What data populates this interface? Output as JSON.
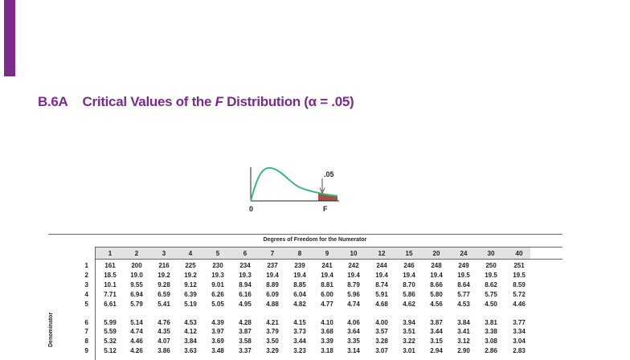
{
  "title": {
    "label": "B.6A",
    "prefix": "Critical Values of the ",
    "italic": "F",
    "suffix": " Distribution (α = .05)"
  },
  "figure": {
    "tail_label": ".05",
    "zero_label": "0",
    "f_label": "F"
  },
  "table": {
    "column_group": "Degrees of Freedom for the Numerator",
    "row_group": "Denominator",
    "columns": [
      "1",
      "2",
      "3",
      "4",
      "5",
      "6",
      "7",
      "8",
      "9",
      "10",
      "12",
      "15",
      "20",
      "24",
      "30",
      "40"
    ],
    "rows": [
      {
        "df": "1",
        "values": [
          "161",
          "200",
          "216",
          "225",
          "230",
          "234",
          "237",
          "239",
          "241",
          "242",
          "244",
          "246",
          "248",
          "249",
          "250",
          "251"
        ]
      },
      {
        "df": "2",
        "values": [
          "18.5",
          "19.0",
          "19.2",
          "19.2",
          "19.3",
          "19.3",
          "19.4",
          "19.4",
          "19.4",
          "19.4",
          "19.4",
          "19.4",
          "19.4",
          "19.5",
          "19.5",
          "19.5"
        ]
      },
      {
        "df": "3",
        "values": [
          "10.1",
          "9.55",
          "9.28",
          "9.12",
          "9.01",
          "8.94",
          "8.89",
          "8.85",
          "8.81",
          "8.79",
          "8.74",
          "8.70",
          "8.66",
          "8.64",
          "8.62",
          "8.59"
        ]
      },
      {
        "df": "4",
        "values": [
          "7.71",
          "6.94",
          "6.59",
          "6.39",
          "6.26",
          "6.16",
          "6.09",
          "6.04",
          "6.00",
          "5.96",
          "5.91",
          "5.86",
          "5.80",
          "5.77",
          "5.75",
          "5.72"
        ]
      },
      {
        "df": "5",
        "values": [
          "6.61",
          "5.79",
          "5.41",
          "5.19",
          "5.05",
          "4.95",
          "4.88",
          "4.82",
          "4.77",
          "4.74",
          "4.68",
          "4.62",
          "4.56",
          "4.53",
          "4.50",
          "4.46"
        ]
      },
      {
        "df": "6",
        "values": [
          "5.99",
          "5.14",
          "4.76",
          "4.53",
          "4.39",
          "4.28",
          "4.21",
          "4.15",
          "4.10",
          "4.06",
          "4.00",
          "3.94",
          "3.87",
          "3.84",
          "3.81",
          "3.77"
        ]
      },
      {
        "df": "7",
        "values": [
          "5.59",
          "4.74",
          "4.35",
          "4.12",
          "3.97",
          "3.87",
          "3.79",
          "3.73",
          "3.68",
          "3.64",
          "3.57",
          "3.51",
          "3.44",
          "3.41",
          "3.38",
          "3.34"
        ]
      },
      {
        "df": "8",
        "values": [
          "5.32",
          "4.46",
          "4.07",
          "3.84",
          "3.69",
          "3.58",
          "3.50",
          "3.44",
          "3.39",
          "3.35",
          "3.28",
          "3.22",
          "3.15",
          "3.12",
          "3.08",
          "3.04"
        ]
      },
      {
        "df": "9",
        "values": [
          "5.12",
          "4.26",
          "3.86",
          "3.63",
          "3.48",
          "3.37",
          "3.29",
          "3.23",
          "3.18",
          "3.14",
          "3.07",
          "3.01",
          "2.94",
          "2.90",
          "2.86",
          "2.83"
        ]
      }
    ]
  }
}
